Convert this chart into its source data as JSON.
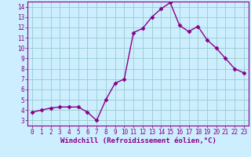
{
  "x": [
    0,
    1,
    2,
    3,
    4,
    5,
    6,
    7,
    8,
    9,
    10,
    11,
    12,
    13,
    14,
    15,
    16,
    17,
    18,
    19,
    20,
    21,
    22,
    23
  ],
  "y": [
    3.8,
    4.0,
    4.2,
    4.3,
    4.3,
    4.3,
    3.8,
    3.0,
    5.0,
    6.6,
    7.0,
    11.5,
    11.9,
    13.0,
    13.8,
    14.4,
    12.2,
    11.6,
    12.1,
    10.8,
    10.0,
    9.0,
    8.0,
    7.6
  ],
  "line_color": "#880088",
  "marker": "D",
  "markersize": 2.5,
  "linewidth": 1.0,
  "background_color": "#cceeff",
  "grid_color": "#99cccc",
  "xlabel": "Windchill (Refroidissement éolien,°C)",
  "xlim": [
    -0.5,
    23.5
  ],
  "ylim": [
    2.5,
    14.5
  ],
  "xticks": [
    0,
    1,
    2,
    3,
    4,
    5,
    6,
    7,
    8,
    9,
    10,
    11,
    12,
    13,
    14,
    15,
    16,
    17,
    18,
    19,
    20,
    21,
    22,
    23
  ],
  "yticks": [
    3,
    4,
    5,
    6,
    7,
    8,
    9,
    10,
    11,
    12,
    13,
    14
  ],
  "tick_fontsize": 5.5,
  "xlabel_fontsize": 6.5,
  "label_color": "#880088",
  "tick_color": "#880088",
  "spine_color": "#880088"
}
